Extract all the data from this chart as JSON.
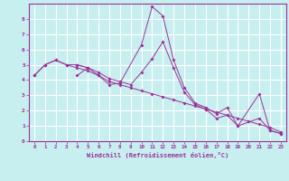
{
  "title": "",
  "xlabel": "Windchill (Refroidissement éolien,°C)",
  "ylabel": "",
  "xlim": [
    -0.5,
    23.5
  ],
  "ylim": [
    0,
    9
  ],
  "xticks": [
    0,
    1,
    2,
    3,
    4,
    5,
    6,
    7,
    8,
    9,
    10,
    11,
    12,
    13,
    14,
    15,
    16,
    17,
    18,
    19,
    20,
    21,
    22,
    23
  ],
  "yticks": [
    0,
    1,
    2,
    3,
    4,
    5,
    6,
    7,
    8
  ],
  "background_color": "#c8efef",
  "line_color": "#993399",
  "grid_color": "#ffffff",
  "series": [
    {
      "x": [
        0,
        1,
        2,
        3,
        4,
        5
      ],
      "y": [
        4.3,
        5.0,
        5.3,
        5.0,
        5.0,
        4.8
      ]
    },
    {
      "x": [
        4,
        5,
        6,
        7,
        8,
        10,
        11,
        12,
        13,
        14,
        15,
        16,
        17,
        18,
        19,
        21,
        22,
        23
      ],
      "y": [
        4.3,
        4.8,
        4.3,
        3.7,
        3.8,
        6.3,
        8.8,
        8.2,
        5.3,
        3.5,
        2.5,
        2.2,
        1.8,
        2.2,
        1.0,
        3.1,
        0.7,
        0.5
      ]
    },
    {
      "x": [
        0,
        1,
        2,
        3,
        4,
        5,
        6,
        7,
        8,
        9,
        10,
        11,
        12,
        13,
        14,
        15,
        16,
        17,
        18,
        19,
        20,
        21,
        22,
        23
      ],
      "y": [
        4.3,
        5.0,
        5.3,
        5.0,
        4.8,
        4.6,
        4.3,
        3.9,
        3.7,
        3.5,
        3.3,
        3.1,
        2.9,
        2.7,
        2.5,
        2.3,
        2.1,
        1.9,
        1.7,
        1.5,
        1.3,
        1.1,
        0.9,
        0.6
      ]
    },
    {
      "x": [
        4,
        5,
        6,
        7,
        8,
        9,
        10,
        11,
        12,
        13,
        14,
        15,
        16,
        17,
        18,
        19,
        21,
        22,
        23
      ],
      "y": [
        5.0,
        4.8,
        4.5,
        4.1,
        3.9,
        3.7,
        4.5,
        5.4,
        6.5,
        4.8,
        3.2,
        2.4,
        2.1,
        1.5,
        1.7,
        1.0,
        1.5,
        0.7,
        0.5
      ]
    }
  ]
}
